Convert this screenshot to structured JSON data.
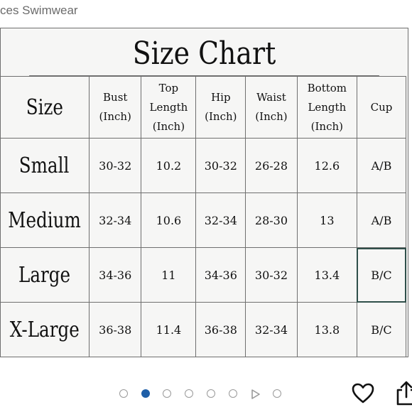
{
  "header": {
    "title_fragment": "ces Swimwear"
  },
  "chart": {
    "title": "Size Chart",
    "columns": [
      {
        "lines": [
          "Size"
        ]
      },
      {
        "lines": [
          "Bust",
          "(Inch)"
        ]
      },
      {
        "lines": [
          "Top",
          "Length",
          "(Inch)"
        ]
      },
      {
        "lines": [
          "Hip",
          "(Inch)"
        ]
      },
      {
        "lines": [
          "Waist",
          "(Inch)"
        ]
      },
      {
        "lines": [
          "Bottom",
          "Length",
          "(Inch)"
        ]
      },
      {
        "lines": [
          "Cup"
        ]
      }
    ],
    "rows": [
      {
        "label": "Small",
        "values": [
          "30-32",
          "10.2",
          "30-32",
          "26-28",
          "12.6",
          "A/B"
        ]
      },
      {
        "label": "Medium",
        "values": [
          "32-34",
          "10.6",
          "32-34",
          "28-30",
          "13",
          "A/B"
        ]
      },
      {
        "label": "Large",
        "values": [
          "34-36",
          "11",
          "34-36",
          "30-32",
          "13.4",
          "B/C"
        ]
      },
      {
        "label": "X-Large",
        "values": [
          "36-38",
          "11.4",
          "36-38",
          "32-34",
          "13.8",
          "B/C"
        ]
      }
    ],
    "selected_cell": {
      "row": 2,
      "col": 6
    }
  },
  "carousel": {
    "items": [
      "image",
      "image",
      "image",
      "image",
      "image",
      "image",
      "video",
      "image"
    ],
    "active_index": 1,
    "accent_color": "#1f5fa8"
  },
  "actions": {
    "like_icon": "heart-icon",
    "share_icon": "share-icon"
  }
}
